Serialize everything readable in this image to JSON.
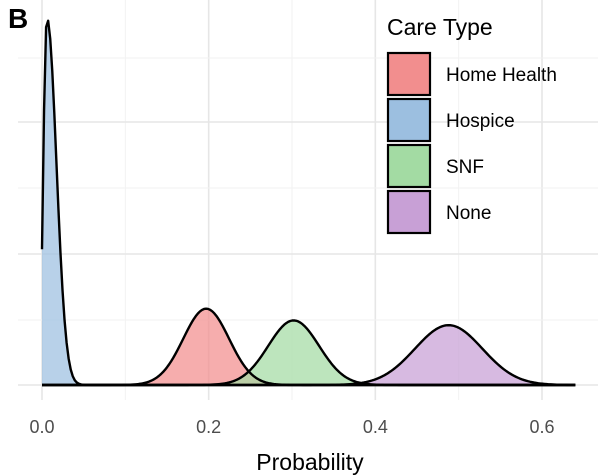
{
  "panel_label": "B",
  "chart_data": {
    "type": "area",
    "subtype": "density",
    "title": "",
    "xlabel": "Probability",
    "ylabel": "",
    "xlim": [
      -0.03,
      0.65
    ],
    "ylim": [
      0,
      1.0
    ],
    "x_ticks": [
      {
        "value": 0.0,
        "label": "0.0"
      },
      {
        "value": 0.2,
        "label": "0.2"
      },
      {
        "value": 0.4,
        "label": "0.4"
      },
      {
        "value": 0.6,
        "label": "0.6"
      }
    ],
    "y_ticks_visible": false,
    "grid": true,
    "legend": {
      "title": "Care Type",
      "position": "top-right"
    },
    "series": [
      {
        "name": "Home Health",
        "color": "#f28e8e",
        "distribution": "normal",
        "mean": 0.197,
        "sd": 0.0275,
        "peak": 0.208,
        "range": [
          0.12,
          0.28
        ]
      },
      {
        "name": "Hospice",
        "color": "#9cbfe0",
        "distribution": "skewed-at-zero",
        "mode": 0.006,
        "peak": 1.0,
        "start_value": 0.37,
        "range": [
          0.0,
          0.065
        ]
      },
      {
        "name": "SNF",
        "color": "#a3dba3",
        "distribution": "normal",
        "mean": 0.302,
        "sd": 0.0305,
        "peak": 0.176,
        "range": [
          0.2,
          0.41
        ]
      },
      {
        "name": "None",
        "color": "#c8a0d6",
        "distribution": "normal",
        "mean": 0.488,
        "sd": 0.0405,
        "peak": 0.163,
        "range": [
          0.35,
          0.64
        ]
      }
    ]
  }
}
